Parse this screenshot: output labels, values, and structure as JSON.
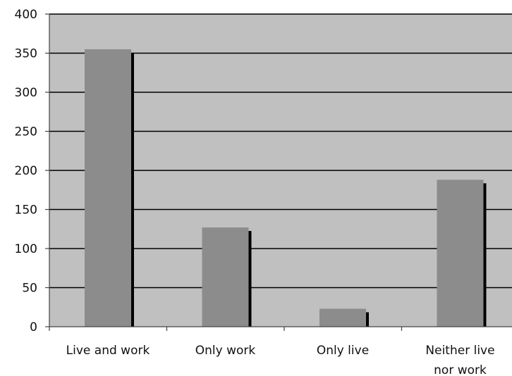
{
  "chart_data": {
    "type": "bar",
    "categories": [
      [
        "Live and work"
      ],
      [
        "Only work"
      ],
      [
        "Only live"
      ],
      [
        "Neither live",
        "nor work"
      ]
    ],
    "values": [
      355,
      127,
      23,
      188
    ],
    "ylim": [
      0,
      400
    ],
    "yticks": [
      0,
      50,
      100,
      150,
      200,
      250,
      300,
      350,
      400
    ],
    "title": "",
    "xlabel": "",
    "ylabel": "",
    "grid": "horizontal",
    "legend": "none",
    "colors": {
      "plot_background": "#c0c0c0",
      "bar_fill": "#8c8c8c",
      "bar_shadow": "#000000",
      "gridline": "#000000",
      "axis": "#444444"
    }
  }
}
